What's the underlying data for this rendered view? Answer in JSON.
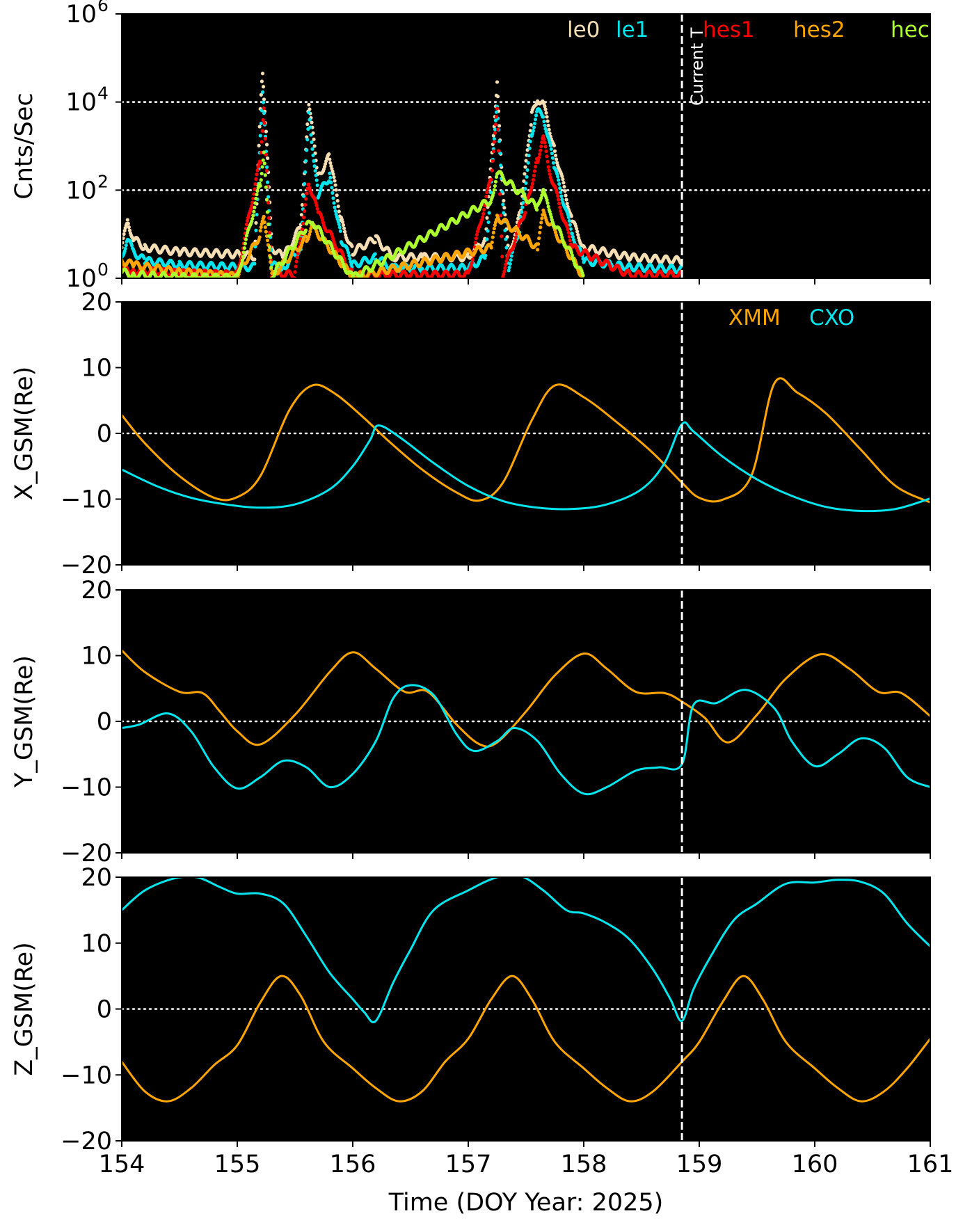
{
  "figure": {
    "xlabel": "Time (DOY Year: 2025)",
    "xlim": [
      154,
      161
    ],
    "xticks": [
      "154",
      "155",
      "156",
      "157",
      "158",
      "159",
      "160",
      "161"
    ],
    "current_time_doy": 158.85,
    "current_time_label": "Current T"
  },
  "chart_data": [
    {
      "type": "scatter",
      "ylabel": "Cnts/Sec",
      "yscale": "log",
      "ylim": [
        1,
        1000000
      ],
      "yticks": [
        {
          "base": "10",
          "exp": "0"
        },
        {
          "base": "10",
          "exp": "2"
        },
        {
          "base": "10",
          "exp": "4"
        },
        {
          "base": "10",
          "exp": "6"
        }
      ],
      "gridlines": [
        100,
        10000
      ],
      "legend_position": "top-right",
      "series": [
        {
          "name": "le0",
          "color": "#f5deb3",
          "x": [
            154.0,
            154.05,
            154.1,
            154.2,
            154.5,
            155.0,
            155.15,
            155.2,
            155.22,
            155.25,
            155.3,
            155.4,
            155.55,
            155.62,
            155.7,
            155.8,
            155.9,
            156.0,
            156.2,
            156.35,
            156.6,
            157.0,
            157.15,
            157.25,
            157.3,
            157.35,
            157.45,
            157.55,
            157.6,
            157.65,
            157.75,
            157.9,
            158.0,
            158.4,
            158.85
          ],
          "y": [
            5,
            20,
            8,
            5,
            4,
            3.5,
            3.2,
            6000,
            50000,
            2000,
            5,
            3,
            15,
            10000,
            200,
            600,
            20,
            4,
            8,
            3,
            3,
            3,
            8,
            25000,
            100,
            3,
            30,
            5000,
            12000,
            9000,
            800,
            20,
            5,
            3,
            2.5
          ]
        },
        {
          "name": "le1",
          "color": "#00e5ee",
          "x": [
            154.0,
            154.05,
            154.1,
            154.2,
            154.5,
            155.0,
            155.15,
            155.2,
            155.22,
            155.25,
            155.3,
            155.4,
            155.55,
            155.62,
            155.7,
            155.8,
            155.9,
            156.0,
            156.2,
            156.35,
            156.6,
            157.0,
            157.15,
            157.25,
            157.3,
            157.35,
            157.45,
            157.55,
            157.6,
            157.65,
            157.75,
            157.9,
            158.0,
            158.4,
            158.85
          ],
          "y": [
            3,
            8,
            4,
            2.5,
            2,
            1.8,
            1.8,
            2000,
            15000,
            800,
            2,
            1.7,
            5,
            5000,
            80,
            200,
            8,
            2,
            3,
            1.7,
            1.7,
            1.7,
            3,
            9000,
            40,
            1.8,
            15,
            2000,
            6000,
            5000,
            300,
            10,
            2.5,
            1.8,
            1.6
          ]
        },
        {
          "name": "hes1",
          "color": "#ff0000",
          "x": [
            154.0,
            154.1,
            154.5,
            155.0,
            155.2,
            155.23,
            155.3,
            155.5,
            155.62,
            155.7,
            156.0,
            156.5,
            157.0,
            157.2,
            157.25,
            157.3,
            157.5,
            157.6,
            157.65,
            157.7,
            157.9,
            158.4,
            158.85
          ],
          "y": [
            1.8,
            1.5,
            1.3,
            1.2,
            500,
            6000,
            1.3,
            1.2,
            150,
            30,
            1.2,
            1.2,
            1.2,
            200,
            6000,
            1.3,
            40,
            500,
            1500,
            300,
            5,
            1.2,
            1.2
          ]
        },
        {
          "name": "hes2",
          "color": "#ffa500",
          "x": [
            154.0,
            154.1,
            154.5,
            155.0,
            155.2,
            155.23,
            155.3,
            155.6,
            155.65,
            156.0,
            157.2,
            157.25,
            157.6,
            157.65,
            158.0
          ],
          "y": [
            2.5,
            2,
            1.4,
            1.1,
            10,
            30,
            1.1,
            8,
            15,
            1.05,
            5,
            25,
            5,
            30,
            1.05
          ]
        },
        {
          "name": "hec",
          "color": "#adff2f",
          "x": [
            154.0,
            154.1,
            154.5,
            155.0,
            155.2,
            155.23,
            155.3,
            155.6,
            155.65,
            156.0,
            157.2,
            157.25,
            157.6,
            157.65,
            157.7,
            158.0
          ],
          "y": [
            1.4,
            1.2,
            1.05,
            1.02,
            150,
            600,
            1.1,
            15,
            20,
            1.02,
            60,
            250,
            40,
            120,
            30,
            1.02
          ]
        }
      ]
    },
    {
      "type": "line",
      "ylabel": "X_GSM(Re)",
      "ylim": [
        -20,
        20
      ],
      "yticks": [
        "−20",
        "−10",
        "0",
        "10",
        "20"
      ],
      "gridlines": [
        0
      ],
      "legend_position": "top-right",
      "series": [
        {
          "name": "XMM",
          "color": "#ffa500",
          "x": [
            154.0,
            154.2,
            154.5,
            154.8,
            155.0,
            155.2,
            155.45,
            155.65,
            155.85,
            156.1,
            156.3,
            156.6,
            156.9,
            157.1,
            157.3,
            157.55,
            157.75,
            158.0,
            158.3,
            158.6,
            158.85,
            159.0,
            159.2,
            159.45,
            159.65,
            159.85,
            160.1,
            160.4,
            160.7,
            161.0
          ],
          "y": [
            2.8,
            -1.5,
            -6.5,
            -9.8,
            -9.7,
            -6.5,
            3.5,
            7.3,
            6,
            2.3,
            -1,
            -5.5,
            -9,
            -10.2,
            -7.5,
            2,
            7.3,
            5.5,
            1.5,
            -3,
            -7.5,
            -9.8,
            -10.1,
            -6.5,
            7.6,
            6.2,
            3,
            -2.5,
            -8,
            -10.5
          ]
        },
        {
          "name": "CXO",
          "color": "#00e5ee",
          "x": [
            154.0,
            154.3,
            154.6,
            154.9,
            155.2,
            155.5,
            155.8,
            156.0,
            156.15,
            156.22,
            156.4,
            156.7,
            157.0,
            157.3,
            157.6,
            157.9,
            158.2,
            158.5,
            158.7,
            158.85,
            158.95,
            159.2,
            159.5,
            159.8,
            160.1,
            160.4,
            160.7,
            161.0
          ],
          "y": [
            -5.5,
            -8,
            -9.8,
            -10.8,
            -11.3,
            -10.8,
            -8.5,
            -5,
            -1,
            1.2,
            -0.5,
            -4.5,
            -8,
            -10.3,
            -11.3,
            -11.5,
            -10.8,
            -8.5,
            -4.5,
            1.4,
            0.3,
            -3.5,
            -7,
            -9.5,
            -11.2,
            -11.8,
            -11.5,
            -9.9
          ]
        }
      ]
    },
    {
      "type": "line",
      "ylabel": "Y_GSM(Re)",
      "ylim": [
        -20,
        20
      ],
      "yticks": [
        "−20",
        "−10",
        "0",
        "10",
        "20"
      ],
      "gridlines": [
        0
      ],
      "series": [
        {
          "name": "XMM",
          "color": "#ffa500",
          "x": [
            154.0,
            154.2,
            154.5,
            154.7,
            154.85,
            155.0,
            155.2,
            155.5,
            155.8,
            156.0,
            156.2,
            156.45,
            156.65,
            156.9,
            157.1,
            157.25,
            157.5,
            157.75,
            158.0,
            158.2,
            158.45,
            158.7,
            158.85,
            159.05,
            159.25,
            159.5,
            159.75,
            160.05,
            160.3,
            160.55,
            160.75,
            161.0
          ],
          "y": [
            10.8,
            7.5,
            4.5,
            4.3,
            1.5,
            -1.5,
            -3.5,
            1,
            7.5,
            10.5,
            8,
            4.5,
            4.5,
            -0.5,
            -3.5,
            -3.2,
            1.5,
            7,
            10.3,
            8,
            4.5,
            4.3,
            3,
            0.5,
            -3.2,
            1,
            6.5,
            10.2,
            8,
            4.5,
            4.3,
            0.8
          ]
        },
        {
          "name": "CXO",
          "color": "#00e5ee",
          "x": [
            154.0,
            154.15,
            154.4,
            154.6,
            154.8,
            155.0,
            155.2,
            155.4,
            155.6,
            155.8,
            156.0,
            156.2,
            156.35,
            156.5,
            156.7,
            156.9,
            157.05,
            157.25,
            157.4,
            157.6,
            157.8,
            158.0,
            158.2,
            158.45,
            158.65,
            158.85,
            158.95,
            159.15,
            159.4,
            159.65,
            159.8,
            160.0,
            160.2,
            160.4,
            160.6,
            160.8,
            161.0
          ],
          "y": [
            -1,
            -0.5,
            1.2,
            -1.5,
            -7,
            -10.2,
            -8.5,
            -6,
            -7,
            -10,
            -8,
            -3,
            3.5,
            5.5,
            4,
            -2,
            -4.5,
            -3,
            -1,
            -3,
            -8,
            -11,
            -10,
            -7.5,
            -7,
            -6.5,
            2.5,
            2.8,
            4.8,
            2,
            -3,
            -6.8,
            -5,
            -2.6,
            -4,
            -8.5,
            -10
          ]
        }
      ]
    },
    {
      "type": "line",
      "ylabel": "Z_GSM(Re)",
      "ylim": [
        -20,
        20
      ],
      "yticks": [
        "−20",
        "−10",
        "0",
        "10",
        "20"
      ],
      "gridlines": [
        0
      ],
      "series": [
        {
          "name": "XMM",
          "color": "#ffa500",
          "x": [
            154.0,
            154.2,
            154.4,
            154.6,
            154.8,
            155.0,
            155.2,
            155.38,
            155.55,
            155.75,
            156.0,
            156.2,
            156.4,
            156.6,
            156.8,
            157.0,
            157.2,
            157.38,
            157.55,
            157.75,
            158.0,
            158.2,
            158.4,
            158.6,
            158.85,
            159.0,
            159.2,
            159.38,
            159.55,
            159.75,
            160.0,
            160.2,
            160.4,
            160.6,
            160.8,
            161.0
          ],
          "y": [
            -8,
            -12.5,
            -14,
            -12,
            -8.5,
            -5.5,
            1,
            5,
            2,
            -5,
            -9,
            -12,
            -14,
            -12.5,
            -8,
            -4.5,
            1.5,
            5,
            1.5,
            -5,
            -9,
            -12,
            -14,
            -12.5,
            -8,
            -5,
            1,
            5,
            1.5,
            -5,
            -9,
            -12,
            -14,
            -12.5,
            -9,
            -4.5
          ]
        },
        {
          "name": "CXO",
          "color": "#00e5ee",
          "x": [
            154.0,
            154.2,
            154.45,
            154.65,
            154.85,
            155.0,
            155.2,
            155.4,
            155.6,
            155.8,
            156.0,
            156.1,
            156.2,
            156.35,
            156.5,
            156.7,
            157.0,
            157.25,
            157.45,
            157.65,
            157.85,
            158.0,
            158.2,
            158.4,
            158.6,
            158.75,
            158.85,
            158.95,
            159.1,
            159.3,
            159.5,
            159.75,
            160.0,
            160.2,
            160.4,
            160.6,
            160.8,
            161.0
          ],
          "y": [
            15,
            18,
            19.8,
            20,
            18.5,
            17.5,
            17.5,
            16,
            11,
            5.5,
            1.5,
            -0.5,
            -1.8,
            4,
            9,
            15,
            18,
            20,
            20.2,
            18,
            15,
            14.5,
            13,
            10.5,
            6,
            1.5,
            -1.8,
            3,
            8,
            13.5,
            16,
            19,
            19.2,
            19.6,
            19.3,
            17.5,
            13,
            9.5
          ]
        }
      ]
    }
  ]
}
